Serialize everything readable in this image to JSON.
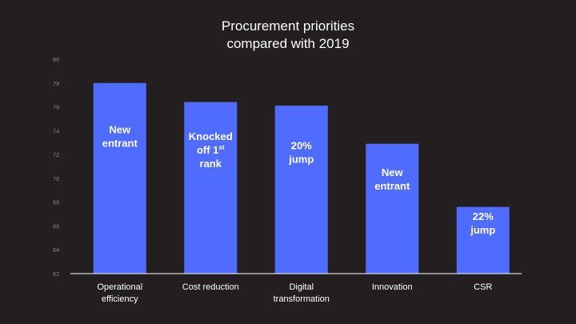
{
  "chart_data": {
    "type": "bar",
    "title_lines": [
      "Procurement priorities",
      "compared with 2019"
    ],
    "categories": [
      [
        "Operational",
        "efficiency"
      ],
      [
        "Cost reduction"
      ],
      [
        "Digital",
        "transformation"
      ],
      [
        "Innovation"
      ],
      [
        "CSR"
      ]
    ],
    "values": [
      78,
      76.4,
      76.1,
      72.9,
      67.6
    ],
    "bar_labels": [
      [
        "New",
        "entrant"
      ],
      [
        "Knocked",
        "off 1|st",
        "rank"
      ],
      [
        "20%",
        "jump"
      ],
      [
        "New",
        "entrant"
      ],
      [
        "22%",
        "jump"
      ]
    ],
    "ylim": [
      62,
      80
    ],
    "yticks": [
      62,
      64,
      66,
      68,
      70,
      72,
      74,
      76,
      78,
      80
    ],
    "xlabel": "",
    "ylabel": "",
    "grid": false,
    "bar_color": "#4f6cff",
    "axis_color": "#ffffff",
    "background": "#231f20"
  }
}
